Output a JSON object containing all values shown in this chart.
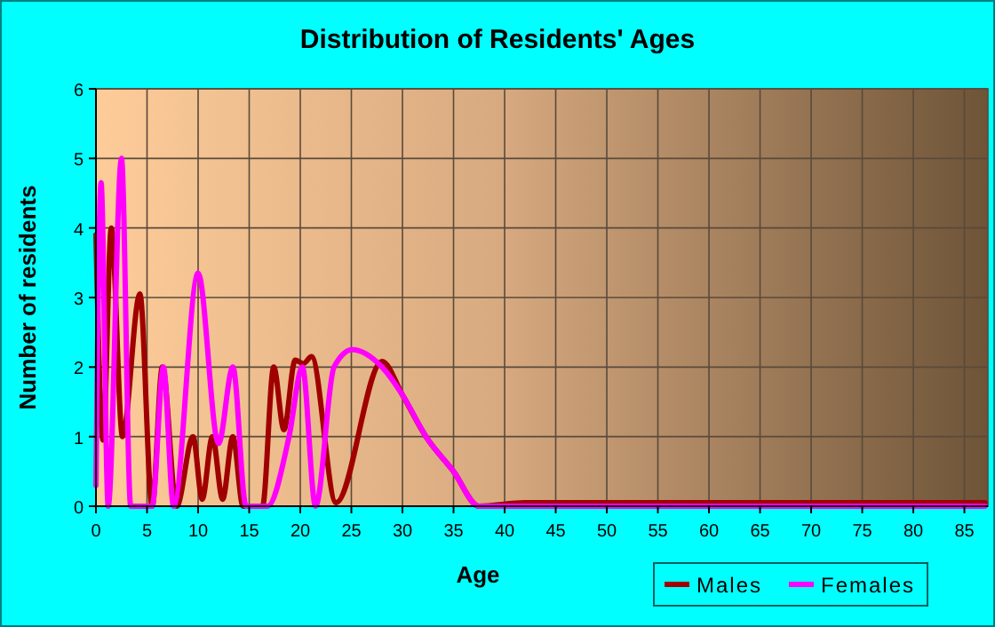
{
  "chart_data": {
    "type": "line",
    "title": "Distribution of Residents' Ages",
    "xlabel": "Age",
    "ylabel": "Number of residents",
    "xlim": [
      0,
      87.3
    ],
    "xticks": [
      0,
      5,
      10,
      15,
      20,
      25,
      30,
      35,
      40,
      45,
      50,
      55,
      60,
      65,
      70,
      75,
      80,
      85
    ],
    "ylim": [
      0,
      6
    ],
    "yticks": [
      0,
      1,
      2,
      3,
      4,
      5,
      6
    ],
    "grid": true,
    "legend": "bottom right",
    "marker": "none",
    "line_style": "solid",
    "series": [
      {
        "name": "Males",
        "color": "#a00000",
        "x": [
          0,
          0.7,
          1.5,
          2.6,
          4.3,
          5.5,
          6.5,
          7.9,
          9.5,
          10.4,
          11.4,
          12.4,
          13.4,
          14.4,
          16.3,
          17.4,
          18.4,
          19.5,
          20.3,
          21.1,
          23.5,
          28,
          30,
          32.3,
          35,
          37.5,
          42,
          87
        ],
        "values": [
          3.9,
          0.95,
          4,
          1,
          3.05,
          0,
          2,
          0,
          1,
          0.1,
          1,
          0.1,
          1,
          0,
          0,
          2,
          1.1,
          2.1,
          2.05,
          2.15,
          0.05,
          2.08,
          1.6,
          1,
          0.5,
          0,
          0.05,
          0.05
        ]
      },
      {
        "name": "Females",
        "color": "#ff00ff",
        "x": [
          0,
          0.5,
          1.2,
          2.5,
          3.4,
          5.5,
          6.6,
          7.6,
          10,
          12,
          13.4,
          14.7,
          16.8,
          18.9,
          20.2,
          21.5,
          23.3,
          25.1,
          28,
          30,
          32.3,
          35,
          37.5,
          87
        ],
        "values": [
          0.3,
          4.65,
          0,
          5,
          0,
          0,
          2,
          0,
          3.35,
          0.9,
          2,
          0,
          0,
          1,
          2,
          0,
          2,
          2.25,
          2,
          1.6,
          1,
          0.5,
          0,
          0
        ]
      }
    ]
  }
}
